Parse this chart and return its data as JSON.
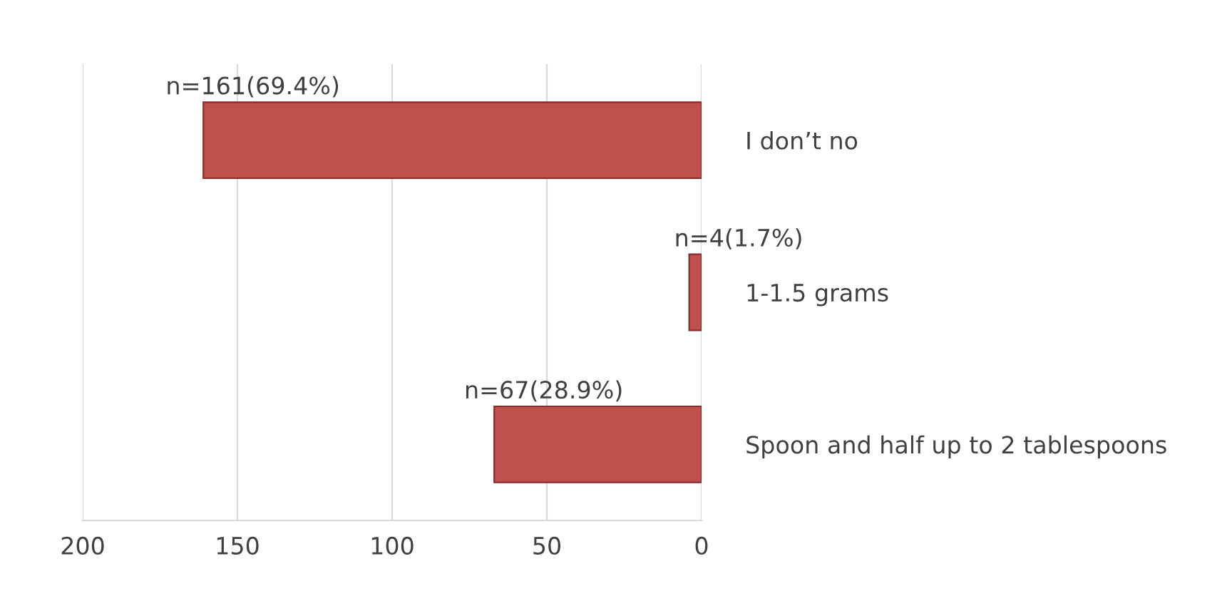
{
  "chart_data": {
    "type": "bar",
    "orientation": "horizontal",
    "categories": [
      "I don’t no",
      "1-1.5 grams",
      "Spoon and half up to 2 tablespoons"
    ],
    "values": [
      161,
      4,
      67
    ],
    "value_labels": [
      "n=161(69.4%)",
      "n=4(1.7%)",
      "n=67(28.9%)"
    ],
    "color": "#c0504d",
    "xlim": [
      200,
      0
    ],
    "xticks": [
      200,
      150,
      100,
      50,
      0
    ],
    "grid": "x",
    "legend": false
  }
}
